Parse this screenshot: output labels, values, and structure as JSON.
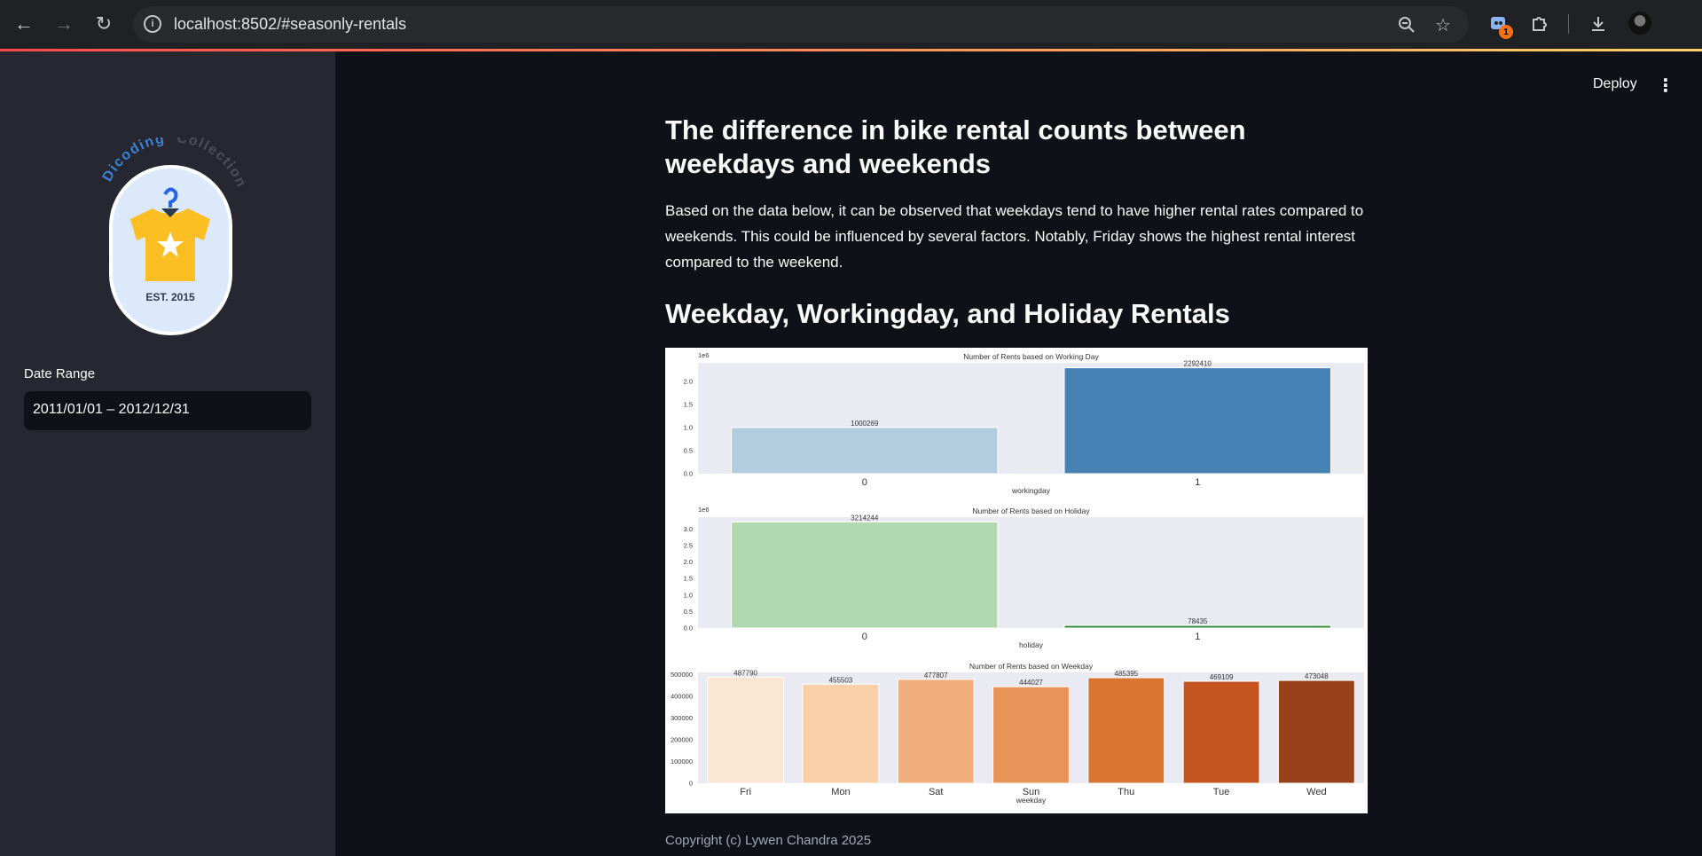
{
  "browser": {
    "url": "localhost:8502/#seasonly-rentals",
    "extension_badge": "1",
    "icons": [
      "back-icon",
      "forward-icon",
      "reload-icon",
      "info-icon",
      "zoom-icon",
      "star-icon",
      "extension-icon",
      "puzzle-icon",
      "download-icon",
      "avatar"
    ]
  },
  "sidebar": {
    "logo": {
      "arc_text_1": "Dicoding",
      "arc_text_2": "Collection",
      "est_text": "EST. 2015"
    },
    "date_range_label": "Date Range",
    "date_range_value": "2011/01/01 – 2012/12/31"
  },
  "header": {
    "deploy_label": "Deploy",
    "menu_icon": "more-vert-icon"
  },
  "main": {
    "title": "The difference in bike rental counts between weekdays and weekends",
    "paragraph": "Based on the data below, it can be observed that weekdays tend to have higher rental rates compared to weekends. This could be influenced by several factors. Notably, Friday shows the highest rental interest compared to the weekend.",
    "subtitle": "Weekday, Workingday, and Holiday Rentals",
    "footer": "Copyright (c) Lywen Chandra 2025"
  },
  "colors": {
    "page_bg": "#0e1117",
    "sidebar_bg": "#262730",
    "plot_bg": "#eaeaf2"
  },
  "chart_data": [
    {
      "type": "bar",
      "title": "Number of Rents based on Working Day",
      "xlabel": "workingday",
      "ylabel": "",
      "offset_text": "1e6",
      "categories": [
        "0",
        "1"
      ],
      "values": [
        1000269,
        2292410
      ],
      "data_labels": [
        "1000269",
        "2292410"
      ],
      "colors": [
        "#b3cde0",
        "#4682b4"
      ],
      "yticks": [
        "0.0",
        "0.5",
        "1.0",
        "1.5",
        "2.0"
      ],
      "ylim": [
        0,
        2400000
      ],
      "grid": false
    },
    {
      "type": "bar",
      "title": "Number of Rents based on Holiday",
      "xlabel": "holiday",
      "ylabel": "",
      "offset_text": "1e6",
      "categories": [
        "0",
        "1"
      ],
      "values": [
        3214244,
        78435
      ],
      "data_labels": [
        "3214244",
        "78435"
      ],
      "colors": [
        "#b2d8b0",
        "#2e8b3a"
      ],
      "yticks": [
        "0.0",
        "0.5",
        "1.0",
        "1.5",
        "2.0",
        "2.5",
        "3.0"
      ],
      "ylim": [
        0,
        3360000
      ],
      "grid": false
    },
    {
      "type": "bar",
      "title": "Number of Rents based on Weekday",
      "xlabel": "weekday",
      "ylabel": "",
      "categories": [
        "Fri",
        "Mon",
        "Sat",
        "Sun",
        "Thu",
        "Tue",
        "Wed"
      ],
      "values": [
        487790,
        455503,
        477807,
        444027,
        485395,
        469109,
        473048
      ],
      "data_labels": [
        "487790",
        "455503",
        "477807",
        "444027",
        "485395",
        "469109",
        "473048"
      ],
      "colors": [
        "#fbe5d3",
        "#f8cfa6",
        "#efae7b",
        "#e89358",
        "#da7433",
        "#c55520",
        "#974019"
      ],
      "yticks": [
        "0",
        "100000",
        "200000",
        "300000",
        "400000",
        "500000"
      ],
      "ylim": [
        0,
        510000
      ],
      "grid": false
    }
  ]
}
